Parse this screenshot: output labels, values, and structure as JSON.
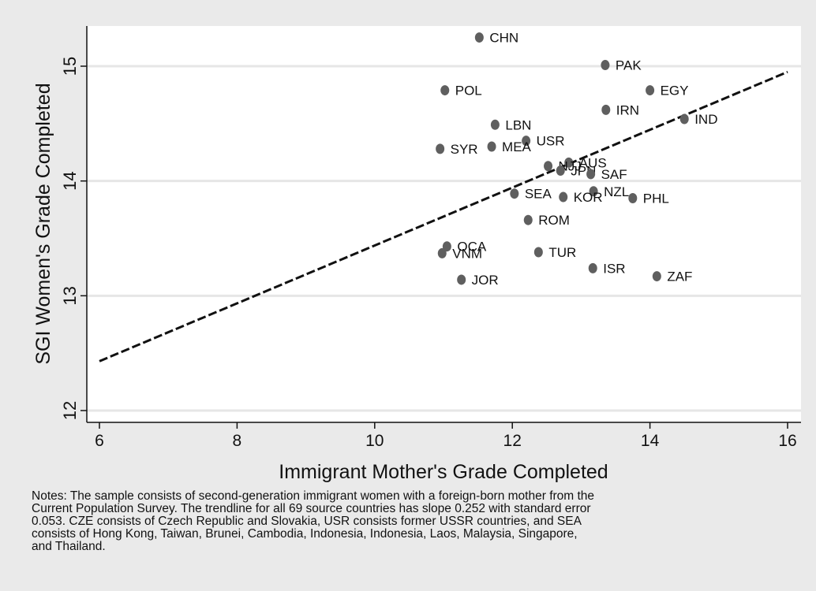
{
  "chart_data": {
    "type": "scatter",
    "title": "",
    "xlabel": "Immigrant Mother's Grade Completed",
    "ylabel": "SGI Women's Grade Completed",
    "xlim": [
      6,
      16
    ],
    "ylim": [
      12,
      15.3
    ],
    "xticks": [
      "6",
      "8",
      "10",
      "12",
      "14",
      "16"
    ],
    "yticks": [
      "12",
      "13",
      "14",
      "15"
    ],
    "ytick_values": [
      12,
      13,
      14,
      15
    ],
    "xtick_values": [
      6,
      8,
      10,
      12,
      14,
      16
    ],
    "grid": "horizontal",
    "colors": {
      "marker": "#5f5f5f",
      "line": "#111111",
      "plot_bg": "#ffffff",
      "page_bg": "#eaeaea",
      "grid": "#e6e6e6"
    },
    "points": [
      {
        "label": "CHN",
        "x": 11.52,
        "y": 15.25
      },
      {
        "label": "PAK",
        "x": 13.35,
        "y": 15.01
      },
      {
        "label": "POL",
        "x": 11.02,
        "y": 14.79
      },
      {
        "label": "EGY",
        "x": 14.0,
        "y": 14.79
      },
      {
        "label": "IRN",
        "x": 13.36,
        "y": 14.62
      },
      {
        "label": "IND",
        "x": 14.5,
        "y": 14.54
      },
      {
        "label": "LBN",
        "x": 11.75,
        "y": 14.49
      },
      {
        "label": "USR",
        "x": 12.2,
        "y": 14.35
      },
      {
        "label": "MEA",
        "x": 11.7,
        "y": 14.3
      },
      {
        "label": "SYR",
        "x": 10.95,
        "y": 14.28
      },
      {
        "label": "AUS",
        "x": 12.82,
        "y": 14.16
      },
      {
        "label": "NJJ",
        "x": 12.52,
        "y": 14.13
      },
      {
        "label": "JPN",
        "x": 12.7,
        "y": 14.09
      },
      {
        "label": "SAF",
        "x": 13.14,
        "y": 14.06
      },
      {
        "label": "NZL",
        "x": 13.18,
        "y": 13.91
      },
      {
        "label": "SEA",
        "x": 12.03,
        "y": 13.89
      },
      {
        "label": "KOR",
        "x": 12.74,
        "y": 13.86
      },
      {
        "label": "PHL",
        "x": 13.75,
        "y": 13.85
      },
      {
        "label": "ROM",
        "x": 12.23,
        "y": 13.66
      },
      {
        "label": "OCA",
        "x": 11.05,
        "y": 13.43
      },
      {
        "label": "VNM",
        "x": 10.98,
        "y": 13.37
      },
      {
        "label": "TUR",
        "x": 12.38,
        "y": 13.38
      },
      {
        "label": "ISR",
        "x": 13.17,
        "y": 13.24
      },
      {
        "label": "ZAF",
        "x": 14.1,
        "y": 13.17
      },
      {
        "label": "JOR",
        "x": 11.26,
        "y": 13.14
      }
    ],
    "trendline": {
      "x": [
        6,
        16
      ],
      "y": [
        12.43,
        14.95
      ]
    }
  },
  "notes": [
    "Notes: The sample consists of second-generation immigrant women with a foreign-born mother from the",
    "Current Population Survey.  The trendline for all 69 source countries has slope 0.252 with standard error",
    "0.053.  CZE consists of Czech Republic and Slovakia, USR consists former USSR countries, and SEA",
    "consists of Hong Kong, Taiwan, Brunei, Cambodia, Indonesia, Indonesia, Laos, Malaysia, Singapore,",
    "and Thailand."
  ]
}
